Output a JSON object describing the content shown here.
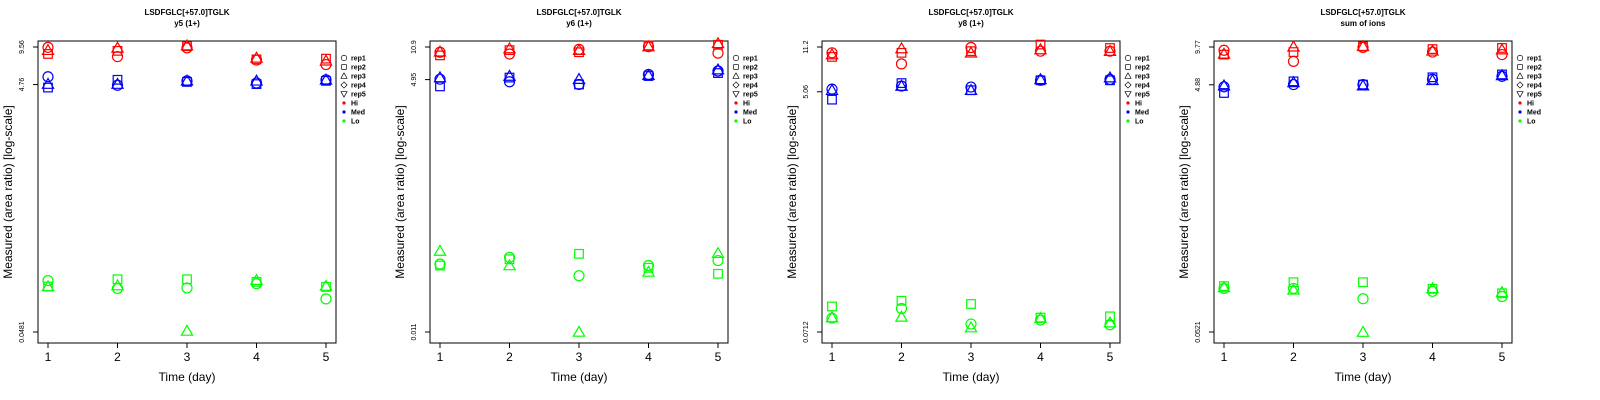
{
  "colors": {
    "Hi": "#ff0000",
    "Med": "#0000ff",
    "Lo": "#00ff00"
  },
  "chart_data": [
    {
      "type": "scatter",
      "title": "LSDFGLC[+57.0]TGLK",
      "subtitle": "y5 (1+)",
      "xlabel": "Time (day)",
      "ylabel": "Measured (area ratio) [log-scale]",
      "y_scale": "log",
      "ylim": [
        0.0481,
        9.56
      ],
      "x_ticks": [
        1,
        2,
        3,
        4,
        5
      ],
      "y_tick_labels": [
        "0.0481",
        "4.76",
        "9.56"
      ],
      "legend_position": "right",
      "legend": [
        "rep1",
        "rep2",
        "rep3",
        "rep4",
        "rep5",
        "Hi",
        "Med",
        "Lo"
      ],
      "series": [
        {
          "name": "Hi",
          "rep": "rep1",
          "x": [
            1,
            2,
            3,
            4,
            5
          ],
          "y": [
            9.5,
            8.0,
            9.4,
            7.5,
            6.9
          ]
        },
        {
          "name": "Hi",
          "rep": "rep2",
          "x": [
            1,
            2,
            3,
            4,
            5
          ],
          "y": [
            8.4,
            8.9,
            9.7,
            7.6,
            7.7
          ]
        },
        {
          "name": "Hi",
          "rep": "rep3",
          "x": [
            1,
            2,
            3,
            4,
            5
          ],
          "y": [
            9.0,
            9.4,
            9.8,
            7.8,
            7.4
          ]
        },
        {
          "name": "Med",
          "rep": "rep1",
          "x": [
            1,
            2,
            3,
            4,
            5
          ],
          "y": [
            5.5,
            4.7,
            5.1,
            4.9,
            5.2
          ]
        },
        {
          "name": "Med",
          "rep": "rep2",
          "x": [
            1,
            2,
            3,
            4,
            5
          ],
          "y": [
            4.5,
            5.2,
            5.0,
            4.8,
            5.1
          ]
        },
        {
          "name": "Med",
          "rep": "rep3",
          "x": [
            1,
            2,
            3,
            4,
            5
          ],
          "y": [
            4.8,
            4.8,
            5.1,
            5.1,
            5.2
          ]
        },
        {
          "name": "Lo",
          "rep": "rep1",
          "x": [
            1,
            2,
            3,
            4,
            5
          ],
          "y": [
            0.125,
            0.108,
            0.109,
            0.118,
            0.089
          ]
        },
        {
          "name": "Lo",
          "rep": "rep2",
          "x": [
            1,
            2,
            3,
            4,
            5
          ],
          "y": [
            0.112,
            0.128,
            0.128,
            0.122,
            0.111
          ]
        },
        {
          "name": "Lo",
          "rep": "rep3",
          "x": [
            1,
            2,
            3,
            4,
            5
          ],
          "y": [
            0.112,
            0.114,
            0.049,
            0.126,
            0.113
          ]
        }
      ]
    },
    {
      "type": "scatter",
      "title": "LSDFGLC[+57.0]TGLK",
      "subtitle": "y6 (1+)",
      "xlabel": "Time (day)",
      "ylabel": "Measured (area ratio) [log-scale]",
      "y_scale": "log",
      "ylim": [
        0.011,
        10.9
      ],
      "x_ticks": [
        1,
        2,
        3,
        4,
        5
      ],
      "y_tick_labels": [
        "0.011",
        "4.95",
        "10.9"
      ],
      "legend_position": "right",
      "legend": [
        "rep1",
        "rep2",
        "rep3",
        "rep4",
        "rep5",
        "Hi",
        "Med",
        "Lo"
      ],
      "series": [
        {
          "name": "Hi",
          "rep": "rep1",
          "x": [
            1,
            2,
            3,
            4,
            5
          ],
          "y": [
            9.6,
            9.2,
            10.3,
            11.0,
            9.4
          ]
        },
        {
          "name": "Hi",
          "rep": "rep2",
          "x": [
            1,
            2,
            3,
            4,
            5
          ],
          "y": [
            8.9,
            10.1,
            9.6,
            11.3,
            11.5
          ]
        },
        {
          "name": "Hi",
          "rep": "rep3",
          "x": [
            1,
            2,
            3,
            4,
            5
          ],
          "y": [
            9.7,
            10.5,
            10.1,
            11.0,
            11.9
          ]
        },
        {
          "name": "Med",
          "rep": "rep1",
          "x": [
            1,
            2,
            3,
            4,
            5
          ],
          "y": [
            5.0,
            4.7,
            4.4,
            5.6,
            6.1
          ]
        },
        {
          "name": "Med",
          "rep": "rep2",
          "x": [
            1,
            2,
            3,
            4,
            5
          ],
          "y": [
            4.2,
            5.2,
            4.4,
            5.4,
            5.8
          ]
        },
        {
          "name": "Med",
          "rep": "rep3",
          "x": [
            1,
            2,
            3,
            4,
            5
          ],
          "y": [
            5.2,
            5.4,
            5.0,
            5.5,
            6.3
          ]
        },
        {
          "name": "Lo",
          "rep": "rep1",
          "x": [
            1,
            2,
            3,
            4,
            5
          ],
          "y": [
            0.057,
            0.067,
            0.043,
            0.055,
            0.062
          ]
        },
        {
          "name": "Lo",
          "rep": "rep2",
          "x": [
            1,
            2,
            3,
            4,
            5
          ],
          "y": [
            0.055,
            0.064,
            0.073,
            0.052,
            0.045
          ]
        },
        {
          "name": "Lo",
          "rep": "rep3",
          "x": [
            1,
            2,
            3,
            4,
            5
          ],
          "y": [
            0.078,
            0.055,
            0.011,
            0.047,
            0.074
          ]
        }
      ]
    },
    {
      "type": "scatter",
      "title": "LSDFGLC[+57.0]TGLK",
      "subtitle": "y8 (1+)",
      "xlabel": "Time (day)",
      "ylabel": "Measured (area ratio) [log-scale]",
      "y_scale": "log",
      "ylim": [
        0.0712,
        11.2
      ],
      "x_ticks": [
        1,
        2,
        3,
        4,
        5
      ],
      "y_tick_labels": [
        "0.0712",
        "5.06",
        "11.2"
      ],
      "legend_position": "right",
      "legend": [
        "rep1",
        "rep2",
        "rep3",
        "rep4",
        "rep5",
        "Hi",
        "Med",
        "Lo"
      ],
      "series": [
        {
          "name": "Hi",
          "rep": "rep1",
          "x": [
            1,
            2,
            3,
            4,
            5
          ],
          "y": [
            10.1,
            8.3,
            11.1,
            10.4,
            10.4
          ]
        },
        {
          "name": "Hi",
          "rep": "rep2",
          "x": [
            1,
            2,
            3,
            4,
            5
          ],
          "y": [
            9.4,
            10.1,
            10.4,
            11.7,
            11.0
          ]
        },
        {
          "name": "Hi",
          "rep": "rep3",
          "x": [
            1,
            2,
            3,
            4,
            5
          ],
          "y": [
            9.8,
            10.9,
            10.1,
            10.7,
            10.4
          ]
        },
        {
          "name": "Med",
          "rep": "rep1",
          "x": [
            1,
            2,
            3,
            4,
            5
          ],
          "y": [
            5.3,
            5.6,
            5.5,
            6.2,
            6.3
          ]
        },
        {
          "name": "Med",
          "rep": "rep2",
          "x": [
            1,
            2,
            3,
            4,
            5
          ],
          "y": [
            4.4,
            5.9,
            5.2,
            6.2,
            6.2
          ]
        },
        {
          "name": "Med",
          "rep": "rep3",
          "x": [
            1,
            2,
            3,
            4,
            5
          ],
          "y": [
            5.2,
            5.6,
            5.2,
            6.3,
            6.5
          ]
        },
        {
          "name": "Lo",
          "rep": "rep1",
          "x": [
            1,
            2,
            3,
            4,
            5
          ],
          "y": [
            0.091,
            0.108,
            0.082,
            0.088,
            0.081
          ]
        },
        {
          "name": "Lo",
          "rep": "rep2",
          "x": [
            1,
            2,
            3,
            4,
            5
          ],
          "y": [
            0.112,
            0.124,
            0.117,
            0.092,
            0.094
          ]
        },
        {
          "name": "Lo",
          "rep": "rep3",
          "x": [
            1,
            2,
            3,
            4,
            5
          ],
          "y": [
            0.092,
            0.093,
            0.077,
            0.091,
            0.084
          ]
        }
      ]
    },
    {
      "type": "scatter",
      "title": "LSDFGLC[+57.0]TGLK",
      "subtitle": "sum of ions",
      "xlabel": "Time (day)",
      "ylabel": "Measured (area ratio) [log-scale]",
      "y_scale": "log",
      "ylim": [
        0.0521,
        9.77
      ],
      "x_ticks": [
        1,
        2,
        3,
        4,
        5
      ],
      "y_tick_labels": [
        "0.0521",
        "4.88",
        "9.77"
      ],
      "legend_position": "right",
      "legend": [
        "rep1",
        "rep2",
        "rep3",
        "rep4",
        "rep5",
        "Hi",
        "Med",
        "Lo"
      ],
      "series": [
        {
          "name": "Hi",
          "rep": "rep1",
          "x": [
            1,
            2,
            3,
            4,
            5
          ],
          "y": [
            9.2,
            7.5,
            9.7,
            8.9,
            8.5
          ]
        },
        {
          "name": "Hi",
          "rep": "rep2",
          "x": [
            1,
            2,
            3,
            4,
            5
          ],
          "y": [
            8.5,
            8.9,
            9.9,
            9.4,
            9.6
          ]
        },
        {
          "name": "Hi",
          "rep": "rep3",
          "x": [
            1,
            2,
            3,
            4,
            5
          ],
          "y": [
            8.6,
            9.8,
            9.9,
            9.1,
            9.3
          ]
        },
        {
          "name": "Med",
          "rep": "rep1",
          "x": [
            1,
            2,
            3,
            4,
            5
          ],
          "y": [
            4.7,
            4.9,
            4.9,
            5.4,
            5.7
          ]
        },
        {
          "name": "Med",
          "rep": "rep2",
          "x": [
            1,
            2,
            3,
            4,
            5
          ],
          "y": [
            4.2,
            5.2,
            4.9,
            5.6,
            5.9
          ]
        },
        {
          "name": "Med",
          "rep": "rep3",
          "x": [
            1,
            2,
            3,
            4,
            5
          ],
          "y": [
            4.8,
            5.1,
            4.8,
            5.3,
            5.8
          ]
        },
        {
          "name": "Lo",
          "rep": "rep1",
          "x": [
            1,
            2,
            3,
            4,
            5
          ],
          "y": [
            0.116,
            0.116,
            0.096,
            0.11,
            0.1
          ]
        },
        {
          "name": "Lo",
          "rep": "rep2",
          "x": [
            1,
            2,
            3,
            4,
            5
          ],
          "y": [
            0.121,
            0.13,
            0.13,
            0.115,
            0.106
          ]
        },
        {
          "name": "Lo",
          "rep": "rep3",
          "x": [
            1,
            2,
            3,
            4,
            5
          ],
          "y": [
            0.118,
            0.113,
            0.052,
            0.116,
            0.108
          ]
        }
      ]
    }
  ]
}
